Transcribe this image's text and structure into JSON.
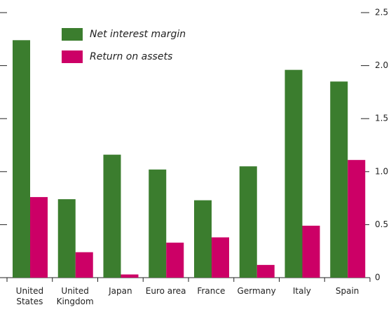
{
  "chart_data": {
    "type": "bar",
    "categories": [
      "United States",
      "United Kingdom",
      "Japan",
      "Euro area",
      "France",
      "Germany",
      "Italy",
      "Spain"
    ],
    "series": [
      {
        "name": "Net interest margin",
        "color": "#3b7d2e",
        "values": [
          2.24,
          0.74,
          1.16,
          1.02,
          0.73,
          1.05,
          1.96,
          1.85
        ]
      },
      {
        "name": "Return on assets",
        "color": "#cc0066",
        "values": [
          0.76,
          0.24,
          0.03,
          0.33,
          0.38,
          0.12,
          0.49,
          1.11
        ]
      }
    ],
    "ylim": [
      0,
      2.5
    ],
    "yticks": [
      0,
      0.5,
      {
        "value": 1,
        "label": "1.0"
      },
      1.5,
      {
        "value": 2,
        "label": "2.0"
      },
      2.5
    ],
    "legend": "top-left"
  }
}
